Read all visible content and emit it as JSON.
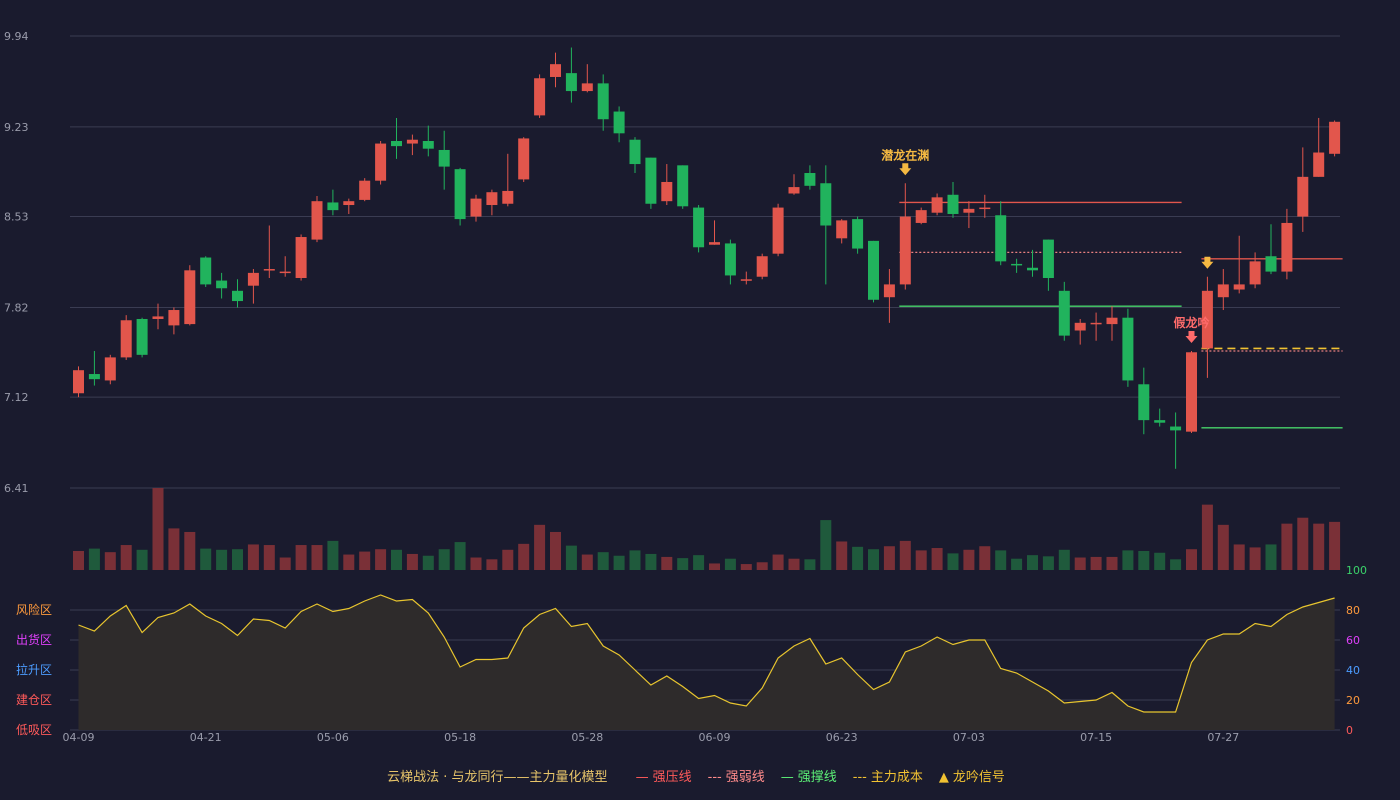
{
  "chart_data": {
    "type": "candlestick",
    "price_axis": {
      "ticks": [
        6.41,
        7.12,
        7.82,
        8.53,
        9.23,
        9.94
      ],
      "range": [
        6.41,
        9.94
      ]
    },
    "x_tick_labels": [
      "04-09",
      "04-21",
      "05-06",
      "05-18",
      "05-28",
      "06-09",
      "06-23",
      "07-03",
      "07-15",
      "07-27"
    ],
    "x_tick_indices": [
      0,
      8,
      16,
      24,
      32,
      40,
      48,
      56,
      64,
      72
    ],
    "candles": [
      [
        7.15,
        7.33,
        7.12,
        7.36
      ],
      [
        7.3,
        7.26,
        7.21,
        7.48
      ],
      [
        7.25,
        7.43,
        7.22,
        7.45
      ],
      [
        7.43,
        7.72,
        7.41,
        7.76
      ],
      [
        7.73,
        7.45,
        7.43,
        7.74
      ],
      [
        7.73,
        7.75,
        7.65,
        7.85
      ],
      [
        7.68,
        7.8,
        7.61,
        7.82
      ],
      [
        7.69,
        8.11,
        7.68,
        8.15
      ],
      [
        8.21,
        8.0,
        7.98,
        8.22
      ],
      [
        8.03,
        7.97,
        7.89,
        8.09
      ],
      [
        7.95,
        7.87,
        7.82,
        8.04
      ],
      [
        7.99,
        8.09,
        7.85,
        8.12
      ],
      [
        8.11,
        8.12,
        8.05,
        8.46
      ],
      [
        8.09,
        8.1,
        8.06,
        8.22
      ],
      [
        8.05,
        8.37,
        8.03,
        8.39
      ],
      [
        8.35,
        8.65,
        8.33,
        8.69
      ],
      [
        8.64,
        8.58,
        8.54,
        8.74
      ],
      [
        8.62,
        8.65,
        8.55,
        8.67
      ],
      [
        8.66,
        8.81,
        8.65,
        8.83
      ],
      [
        8.81,
        9.1,
        8.78,
        9.12
      ],
      [
        9.12,
        9.08,
        8.98,
        9.3
      ],
      [
        9.1,
        9.13,
        9.01,
        9.17
      ],
      [
        9.12,
        9.06,
        9.0,
        9.24
      ],
      [
        9.05,
        8.92,
        8.74,
        9.2
      ],
      [
        8.9,
        8.51,
        8.46,
        8.91
      ],
      [
        8.53,
        8.67,
        8.49,
        8.7
      ],
      [
        8.62,
        8.72,
        8.54,
        8.74
      ],
      [
        8.63,
        8.73,
        8.61,
        9.02
      ],
      [
        8.82,
        9.14,
        8.8,
        9.15
      ],
      [
        9.32,
        9.61,
        9.3,
        9.64
      ],
      [
        9.62,
        9.72,
        9.54,
        9.81
      ],
      [
        9.65,
        9.51,
        9.42,
        9.85
      ],
      [
        9.51,
        9.57,
        9.5,
        9.72
      ],
      [
        9.57,
        9.29,
        9.2,
        9.64
      ],
      [
        9.35,
        9.18,
        9.11,
        9.39
      ],
      [
        9.13,
        8.94,
        8.87,
        9.15
      ],
      [
        8.99,
        8.63,
        8.59,
        8.99
      ],
      [
        8.65,
        8.8,
        8.62,
        8.94
      ],
      [
        8.93,
        8.61,
        8.59,
        8.93
      ],
      [
        8.6,
        8.29,
        8.25,
        8.62
      ],
      [
        8.31,
        8.33,
        8.31,
        8.5
      ],
      [
        8.32,
        8.07,
        8.0,
        8.35
      ],
      [
        8.03,
        8.04,
        8.0,
        8.1
      ],
      [
        8.06,
        8.22,
        8.04,
        8.24
      ],
      [
        8.24,
        8.6,
        8.22,
        8.63
      ],
      [
        8.71,
        8.76,
        8.7,
        8.86
      ],
      [
        8.87,
        8.77,
        8.74,
        8.93
      ],
      [
        8.79,
        8.46,
        8.0,
        8.93
      ],
      [
        8.36,
        8.5,
        8.32,
        8.51
      ],
      [
        8.51,
        8.28,
        8.24,
        8.53
      ],
      [
        8.34,
        7.88,
        7.86,
        8.34
      ],
      [
        7.9,
        8.0,
        7.7,
        8.12
      ],
      [
        8.0,
        8.53,
        7.96,
        8.79
      ],
      [
        8.48,
        8.58,
        8.47,
        8.6
      ],
      [
        8.56,
        8.68,
        8.54,
        8.71
      ],
      [
        8.7,
        8.55,
        8.52,
        8.8
      ],
      [
        8.56,
        8.59,
        8.44,
        8.65
      ],
      [
        8.6,
        8.6,
        8.52,
        8.7
      ],
      [
        8.54,
        8.18,
        8.15,
        8.65
      ],
      [
        8.16,
        8.15,
        8.09,
        8.2
      ],
      [
        8.13,
        8.11,
        8.06,
        8.27
      ],
      [
        8.35,
        8.05,
        7.95,
        8.35
      ],
      [
        7.95,
        7.6,
        7.56,
        8.02
      ],
      [
        7.64,
        7.7,
        7.53,
        7.73
      ],
      [
        7.69,
        7.7,
        7.56,
        7.78
      ],
      [
        7.69,
        7.74,
        7.56,
        7.83
      ],
      [
        7.74,
        7.25,
        7.2,
        7.81
      ],
      [
        7.22,
        6.94,
        6.83,
        7.35
      ],
      [
        6.94,
        6.92,
        6.89,
        7.03
      ],
      [
        6.89,
        6.86,
        6.56,
        7.0
      ],
      [
        6.85,
        7.47,
        6.84,
        7.48
      ],
      [
        7.5,
        7.95,
        7.27,
        8.06
      ],
      [
        7.9,
        8.0,
        7.8,
        8.12
      ],
      [
        7.96,
        8.0,
        7.93,
        8.38
      ],
      [
        8.0,
        8.18,
        7.97,
        8.25
      ],
      [
        8.22,
        8.1,
        8.08,
        8.47
      ],
      [
        8.1,
        8.48,
        8.04,
        8.59
      ],
      [
        8.53,
        8.84,
        8.41,
        9.07
      ],
      [
        8.84,
        9.03,
        8.84,
        9.3
      ],
      [
        9.02,
        9.27,
        9.0,
        9.28
      ]
    ],
    "volume": [
      160,
      180,
      150,
      210,
      170,
      690,
      350,
      320,
      180,
      170,
      175,
      215,
      210,
      105,
      210,
      210,
      245,
      130,
      155,
      175,
      170,
      135,
      120,
      175,
      235,
      105,
      90,
      170,
      220,
      380,
      320,
      205,
      130,
      150,
      120,
      165,
      135,
      110,
      100,
      125,
      55,
      95,
      50,
      65,
      130,
      95,
      90,
      420,
      240,
      195,
      175,
      200,
      245,
      165,
      185,
      140,
      170,
      200,
      165,
      95,
      125,
      115,
      170,
      105,
      110,
      110,
      165,
      160,
      145,
      90,
      175,
      550,
      380,
      215,
      190,
      215,
      390,
      440,
      390,
      405
    ],
    "indicator": {
      "range": [
        0,
        100
      ],
      "right_ticks": [
        0,
        20,
        40,
        60,
        80,
        100
      ],
      "zone_labels": [
        "风险区",
        "出货区",
        "拉升区",
        "建仓区",
        "低吸区"
      ],
      "values": [
        70,
        66,
        76,
        83,
        65,
        75,
        78,
        84,
        76,
        71,
        63,
        74,
        73,
        68,
        79,
        84,
        79,
        81,
        86,
        90,
        86,
        87,
        78,
        62,
        42,
        47,
        47,
        48,
        68,
        77,
        81,
        69,
        71,
        56,
        50,
        40,
        30,
        36,
        29,
        21,
        23,
        18,
        16,
        28,
        48,
        56,
        61,
        44,
        48,
        37,
        27,
        32,
        52,
        56,
        62,
        57,
        60,
        60,
        41,
        38,
        32,
        26,
        18,
        19,
        20,
        25,
        16,
        12,
        12,
        12,
        45,
        60,
        64,
        64,
        71,
        69,
        77,
        82,
        85,
        88
      ]
    },
    "levels": [
      {
        "name": "强压线",
        "value": 8.64,
        "from": 52,
        "to": 69,
        "color": "#e2564c",
        "style": "solid"
      },
      {
        "name": "强弱线",
        "value": 8.25,
        "from": 52,
        "to": 69,
        "color": "#e98080",
        "style": "dotted"
      },
      {
        "name": "强撑线",
        "value": 7.83,
        "from": 52,
        "to": 69,
        "color": "#47d36a",
        "style": "solid"
      },
      {
        "name": "强压线",
        "value": 8.2,
        "from": 71,
        "to": 79,
        "color": "#e2564c",
        "style": "solid"
      },
      {
        "name": "主力成本",
        "value": 7.5,
        "from": 71,
        "to": 79,
        "color": "#f1c232",
        "style": "dashed"
      },
      {
        "name": "强弱线",
        "value": 7.48,
        "from": 71,
        "to": 79,
        "color": "#e98080",
        "style": "dotted"
      },
      {
        "name": "强撑线",
        "value": 6.88,
        "from": 71,
        "to": 79,
        "color": "#47d36a",
        "style": "solid"
      }
    ],
    "signals": [
      {
        "index": 52,
        "label": "潜龙在渊",
        "color": "#f5b942"
      },
      {
        "index": 70,
        "label": "假龙吟",
        "color": "#ff6b6b"
      },
      {
        "index": 71,
        "label": "",
        "color": "#f5b942"
      }
    ],
    "colors": {
      "up": "#e2564c",
      "down": "#21b35d",
      "vol_up": "#7a3037",
      "vol_down": "#1f5a3c",
      "grid": "#3a3c52",
      "axis_text": "#9a9cab",
      "indicator_line": "#e8c52e",
      "indicator_fill": "#2e2b2b"
    }
  },
  "legend": {
    "title": "云梯战法 · 与龙同行——主力量化模型",
    "items": [
      {
        "symbol": "—",
        "label": "强压线",
        "color": "#ff5a5a"
      },
      {
        "symbol": "---",
        "label": "强弱线",
        "color": "#ff8b8b"
      },
      {
        "symbol": "—",
        "label": "强撑线",
        "color": "#5cf077"
      },
      {
        "symbol": "---",
        "label": "主力成本",
        "color": "#f1c232"
      },
      {
        "symbol": "▲",
        "label": "龙吟信号",
        "color": "#f1c232"
      }
    ]
  }
}
